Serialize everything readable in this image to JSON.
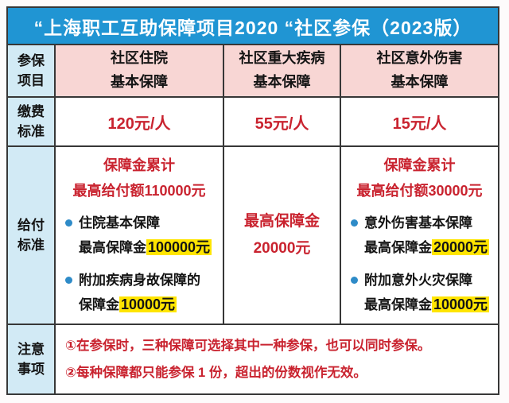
{
  "title": "“上海职工互助保障项目2020 “社区参保（2023版）",
  "colors": {
    "title_bg": "#2095d3",
    "label_bg": "#d2eaf5",
    "header_bg": "#f8d6d4",
    "red": "#c9232f",
    "highlight": "#ffe500",
    "bullet": "#2e8bc8",
    "border": "#373737"
  },
  "header_row": {
    "label": {
      "l1": "参保",
      "l2": "项目"
    },
    "hospital": {
      "l1": "社区住院",
      "l2": "基本保障"
    },
    "illness": {
      "l1": "社区重大疾病",
      "l2": "基本保障"
    },
    "accident": {
      "l1": "社区意外伤害",
      "l2": "基本保障"
    }
  },
  "premium_row": {
    "label": {
      "l1": "缴费",
      "l2": "标准"
    },
    "hospital": "120元/人",
    "illness": "55元/人",
    "accident": "15元/人"
  },
  "benefit_row": {
    "label": {
      "l1": "给付",
      "l2": "标准"
    },
    "hospital": {
      "summary_l1": "保障金累计",
      "summary_l2": "最高给付额110000元",
      "items": [
        {
          "name": "住院基本保障",
          "prefix": "最高保障金",
          "amount": "100000元"
        },
        {
          "name": "附加疾病身故保障的",
          "prefix": "保障金",
          "amount": "10000元"
        }
      ]
    },
    "illness": {
      "l1": "最高保障金",
      "l2": "20000元"
    },
    "accident": {
      "summary_l1": "保障金累计",
      "summary_l2": "最高给付额30000元",
      "items": [
        {
          "name": "意外伤害基本保障",
          "prefix": "最高保障金",
          "amount": "20000元"
        },
        {
          "name": "附加意外火灾保障",
          "prefix": "最高保障金",
          "amount": "10000元"
        }
      ]
    }
  },
  "notes_row": {
    "label": {
      "l1": "注意",
      "l2": "事项"
    },
    "lines": [
      "①在参保时，三种保障可选择其中一种参保，也可以同时参保。",
      "②每种保障都只能参保 1 份，超出的份数视作无效。"
    ]
  }
}
